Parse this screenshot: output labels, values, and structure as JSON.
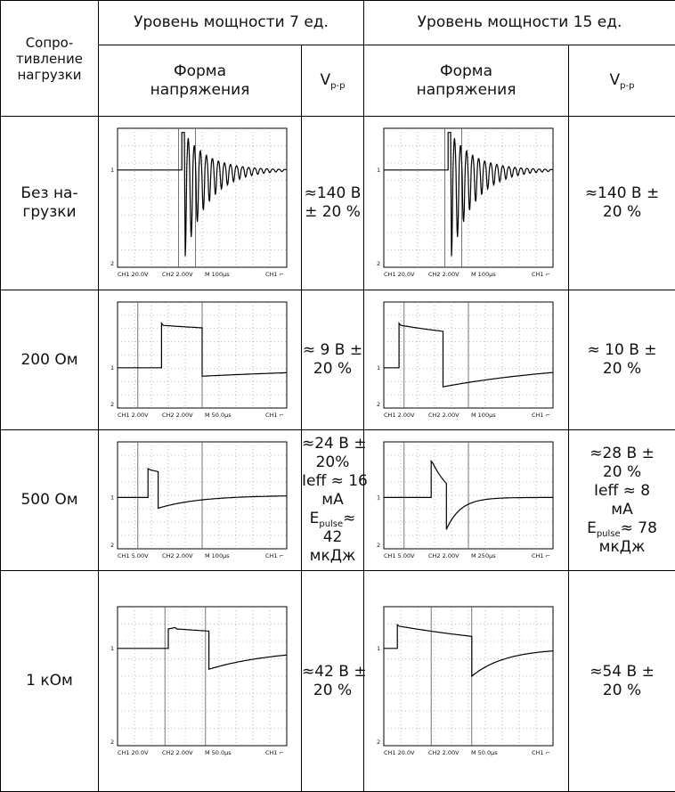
{
  "table": {
    "header": {
      "resistance": [
        "Сопро-",
        "тивление",
        "нагрузки"
      ],
      "levels": [
        "Уровень мощности 7 ед.",
        "Уровень мощности 15 ед."
      ],
      "waveform": [
        "Форма",
        "напряжения"
      ],
      "vpp": {
        "main": "V",
        "sub": "p-p"
      }
    },
    "rows": [
      {
        "load": [
          "Без на-",
          "грузки"
        ],
        "cells": [
          {
            "scope": {
              "marker1": "1",
              "marker2": "2",
              "ch1": "CH1 20.0V",
              "ch2": "CH2 2.00V",
              "time": "M 100µs",
              "trigger": "CH1 ⌐"
            },
            "vpp": [
              [
                "≈140 В"
              ],
              [
                "± 20 %"
              ]
            ]
          },
          {
            "scope": {
              "marker1": "1",
              "marker2": "2",
              "ch1": "CH1 20.0V",
              "ch2": "CH2 2.00V",
              "time": "M 100µs",
              "trigger": "CH1 ⌐"
            },
            "vpp": [
              [
                "≈140 В ±"
              ],
              [
                "20 %"
              ]
            ]
          }
        ]
      },
      {
        "load": [
          "200 Ом"
        ],
        "cells": [
          {
            "scope": {
              "marker1": "1",
              "marker2": "2",
              "ch1": "CH1 2.00V",
              "ch2": "CH2 2.00V",
              "time": "M 50.0µs",
              "trigger": "CH1 ⌐"
            },
            "vpp": [
              [
                "≈ 9 В ±"
              ],
              [
                "20 %"
              ]
            ]
          },
          {
            "scope": {
              "marker1": "1",
              "marker2": "2",
              "ch1": "CH1 2.00V",
              "ch2": "CH2 2.00V",
              "time": "M 100µs",
              "trigger": "CH1 ⌐"
            },
            "vpp": [
              [
                "≈ 10 В ±"
              ],
              [
                "20 %"
              ]
            ]
          }
        ]
      },
      {
        "load": [
          "500 Ом"
        ],
        "cells": [
          {
            "scope": {
              "marker1": "1",
              "marker2": "2",
              "ch1": "CH1 5.00V",
              "ch2": "CH2 2.00V",
              "time": "M 100µs",
              "trigger": "CH1 ⌐"
            },
            "vpp": [
              [
                "≈24 В ±"
              ],
              [
                "20%"
              ],
              [
                "Ieff ≈ 16"
              ],
              [
                "мА"
              ],
              [
                {
                  "main": "E",
                  "sub": "pulse"
                },
                "≈"
              ],
              [
                "42"
              ],
              [
                "мкДж"
              ]
            ]
          },
          {
            "scope": {
              "marker1": "1",
              "marker2": "2",
              "ch1": "CH1 5.00V",
              "ch2": "CH2 2.00V",
              "time": "M 250µs",
              "trigger": "CH1 ⌐"
            },
            "vpp": [
              [
                "≈28 В ±"
              ],
              [
                "20 %"
              ],
              [
                "Ieff ≈ 8"
              ],
              [
                "мА"
              ],
              [
                {
                  "main": "E",
                  "sub": "pulse"
                },
                "≈ 78"
              ],
              [
                "мкДж"
              ]
            ]
          }
        ]
      },
      {
        "load": [
          "1 кОм"
        ],
        "cells": [
          {
            "scope": {
              "marker1": "1",
              "marker2": "2",
              "ch1": "CH1 20.0V",
              "ch2": "CH2 2.00V",
              "time": "M 50.0µs",
              "trigger": "CH1 ⌐"
            },
            "vpp": [
              [
                "≈42 В ±"
              ],
              [
                "20 %"
              ]
            ]
          },
          {
            "scope": {
              "marker1": "1",
              "marker2": "2",
              "ch1": "CH1 20.0V",
              "ch2": "CH2 2.00V",
              "time": "M 50.0µs",
              "trigger": "CH1 ⌐"
            },
            "vpp": [
              [
                "≈54 В ±"
              ],
              [
                "20 %"
              ]
            ]
          }
        ]
      }
    ]
  }
}
